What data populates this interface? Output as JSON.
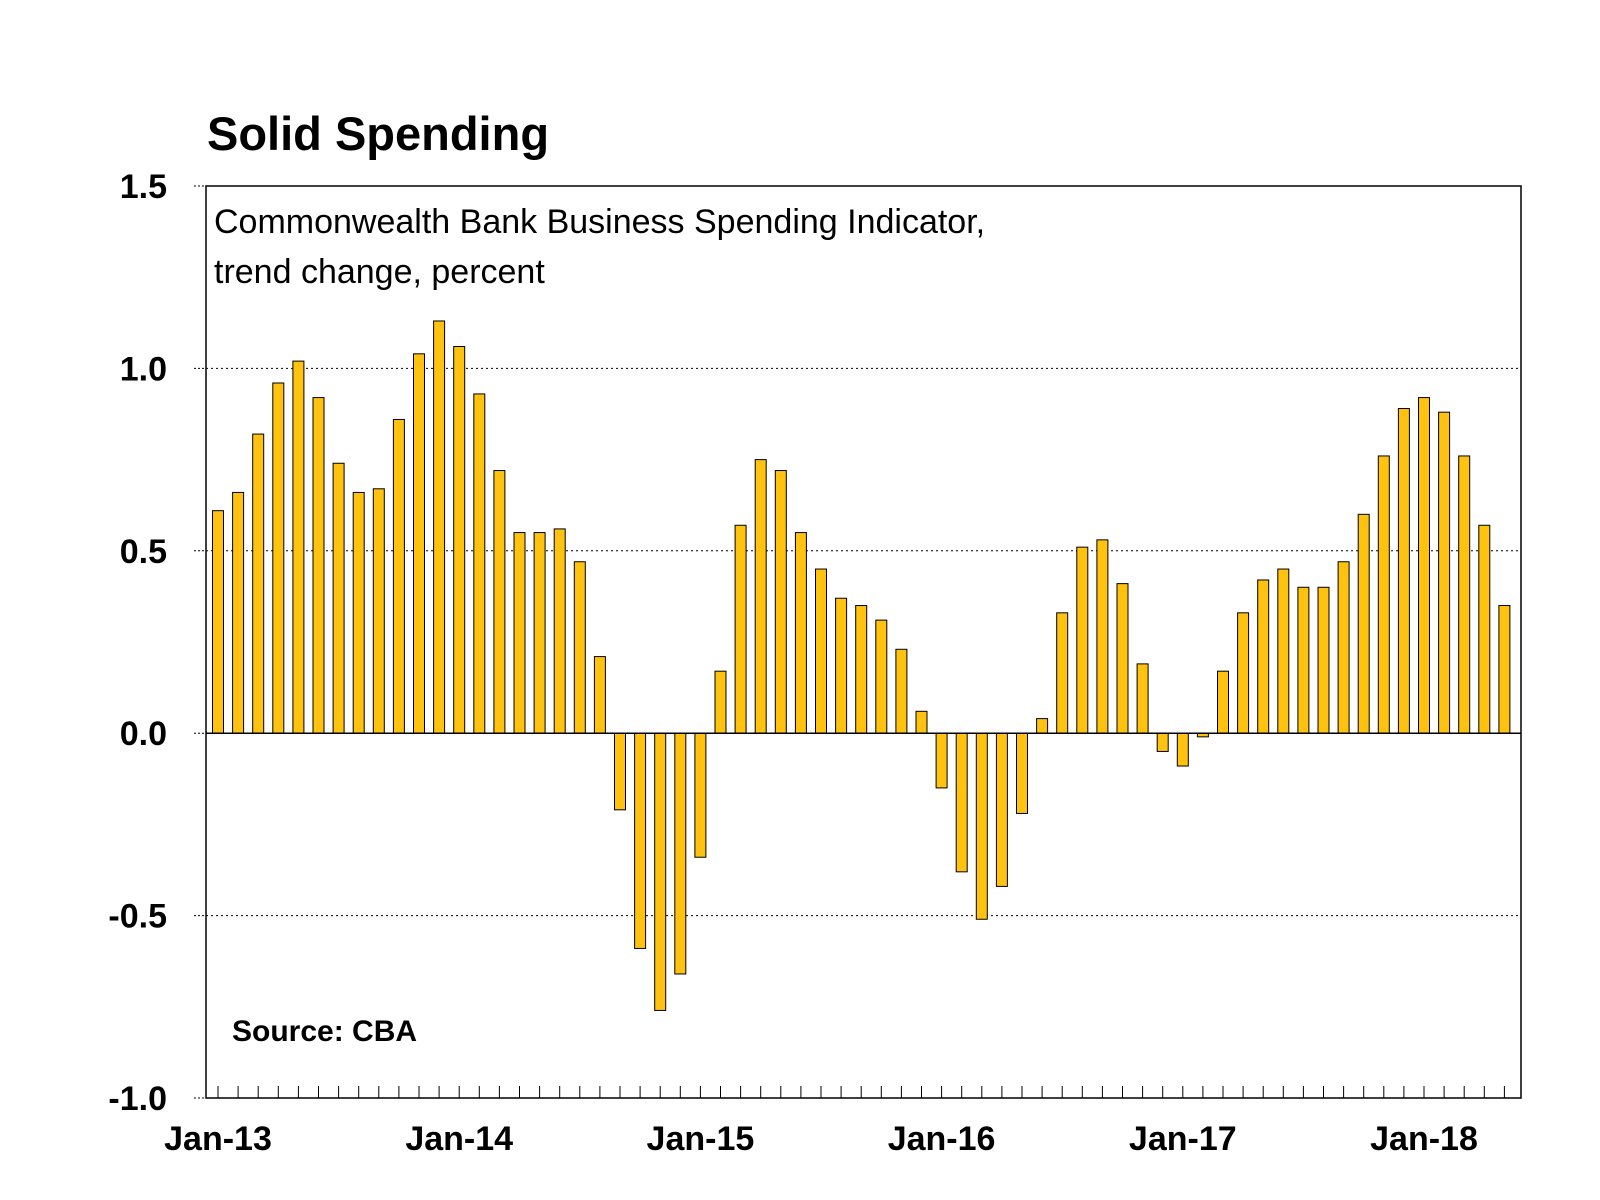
{
  "chart_data": {
    "type": "bar",
    "title": "Solid Spending",
    "subtitle": [
      "Commonwealth Bank Business Spending Indicator,",
      "trend change, percent"
    ],
    "source": "Source: CBA",
    "ylim": [
      -1.0,
      1.5
    ],
    "yticks": [
      "1.5",
      "1.0",
      "0.5",
      "0.0",
      "-0.5",
      "-1.0"
    ],
    "ytick_values": [
      1.5,
      1.0,
      0.5,
      0.0,
      -0.5,
      -1.0
    ],
    "xtick_labels": [
      {
        "label": "Jan-13",
        "index": 0
      },
      {
        "label": "Jan-14",
        "index": 12
      },
      {
        "label": "Jan-15",
        "index": 24
      },
      {
        "label": "Jan-16",
        "index": 36
      },
      {
        "label": "Jan-17",
        "index": 48
      },
      {
        "label": "Jan-18",
        "index": 60
      }
    ],
    "grid": "horizontal dotted",
    "bar_color": "#FFC20E",
    "values": [
      0.61,
      0.66,
      0.82,
      0.96,
      1.02,
      0.92,
      0.74,
      0.66,
      0.67,
      0.86,
      1.04,
      1.13,
      1.06,
      0.93,
      0.72,
      0.55,
      0.55,
      0.56,
      0.47,
      0.21,
      -0.21,
      -0.59,
      -0.76,
      -0.66,
      -0.34,
      0.17,
      0.57,
      0.75,
      0.72,
      0.55,
      0.45,
      0.37,
      0.35,
      0.31,
      0.23,
      0.06,
      -0.15,
      -0.38,
      -0.51,
      -0.42,
      -0.22,
      0.04,
      0.33,
      0.51,
      0.53,
      0.41,
      0.19,
      -0.05,
      -0.09,
      -0.01,
      0.17,
      0.33,
      0.42,
      0.45,
      0.4,
      0.4,
      0.47,
      0.6,
      0.76,
      0.89,
      0.92,
      0.88,
      0.76,
      0.57,
      0.35
    ]
  }
}
